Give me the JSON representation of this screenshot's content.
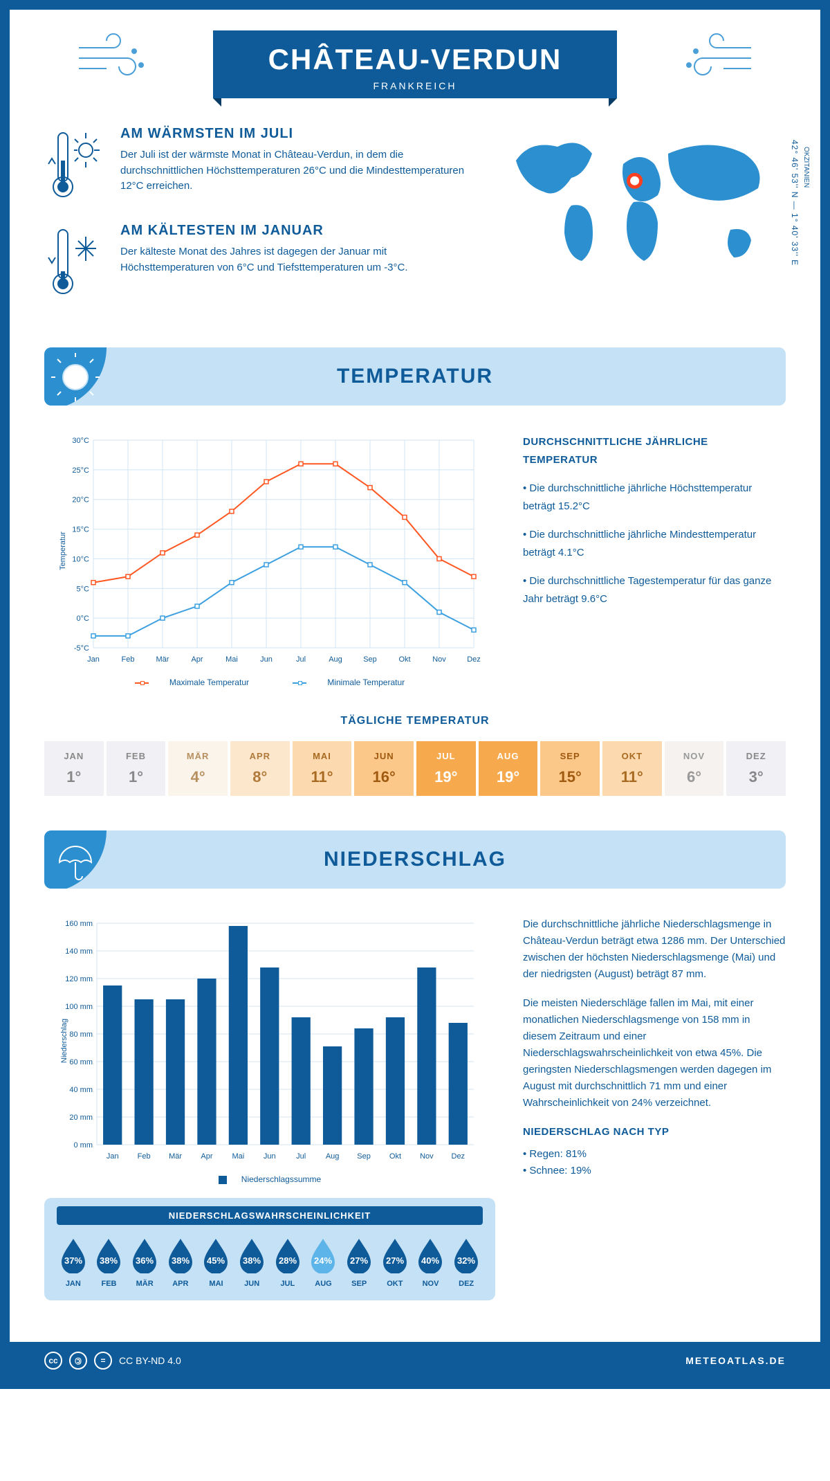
{
  "header": {
    "title": "CHÂTEAU-VERDUN",
    "subtitle": "FRANKREICH"
  },
  "intro": {
    "warm": {
      "heading": "AM WÄRMSTEN IM JULI",
      "text": "Der Juli ist der wärmste Monat in Château-Verdun, in dem die durchschnittlichen Höchsttemperaturen 26°C und die Mindesttemperaturen 12°C erreichen."
    },
    "cold": {
      "heading": "AM KÄLTESTEN IM JANUAR",
      "text": "Der kälteste Monat des Jahres ist dagegen der Januar mit Höchsttemperaturen von 6°C und Tiefsttemperaturen um -3°C."
    },
    "coords": "42° 46' 53'' N — 1° 40' 33'' E",
    "region": "OKZITANIEN",
    "marker": {
      "cx_pct": 48,
      "cy_pct": 36
    }
  },
  "months_short": [
    "Jan",
    "Feb",
    "Mär",
    "Apr",
    "Mai",
    "Jun",
    "Jul",
    "Aug",
    "Sep",
    "Okt",
    "Nov",
    "Dez"
  ],
  "months_upper": [
    "JAN",
    "FEB",
    "MÄR",
    "APR",
    "MAI",
    "JUN",
    "JUL",
    "AUG",
    "SEP",
    "OKT",
    "NOV",
    "DEZ"
  ],
  "temp_section": {
    "title": "TEMPERATUR",
    "chart": {
      "type": "line",
      "y_label": "Temperatur",
      "ylim": [
        -5,
        30
      ],
      "ytick_step": 5,
      "ytick_suffix": "°C",
      "grid_color": "#d0e4f2",
      "series": [
        {
          "name": "Maximale Temperatur",
          "color": "#ff5722",
          "values": [
            6,
            7,
            11,
            14,
            18,
            23,
            26,
            26,
            22,
            17,
            10,
            7
          ]
        },
        {
          "name": "Minimale Temperatur",
          "color": "#3ca0e0",
          "values": [
            -3,
            -3,
            0,
            2,
            6,
            9,
            12,
            12,
            9,
            6,
            1,
            -2
          ]
        }
      ]
    },
    "side": {
      "heading": "DURCHSCHNITTLICHE JÄHRLICHE TEMPERATUR",
      "b1": "• Die durchschnittliche jährliche Höchsttemperatur beträgt 15.2°C",
      "b2": "• Die durchschnittliche jährliche Mindesttemperatur beträgt 4.1°C",
      "b3": "• Die durchschnittliche Tagestemperatur für das ganze Jahr beträgt 9.6°C"
    },
    "daily": {
      "title": "TÄGLICHE TEMPERATUR",
      "values": [
        "1°",
        "1°",
        "4°",
        "8°",
        "11°",
        "16°",
        "19°",
        "19°",
        "15°",
        "11°",
        "6°",
        "3°"
      ],
      "bg_colors": [
        "#f0f0f5",
        "#f0f0f5",
        "#fbf4ea",
        "#fce6cc",
        "#fcd9ae",
        "#fbc88a",
        "#f7a94e",
        "#f7a94e",
        "#fbc88a",
        "#fcd9ae",
        "#f5f2ef",
        "#f0f0f5"
      ],
      "text_colors": [
        "#888",
        "#888",
        "#b79060",
        "#b07a3a",
        "#a86a20",
        "#a05a10",
        "#ffffff",
        "#ffffff",
        "#a05a10",
        "#a86a20",
        "#999",
        "#888"
      ]
    }
  },
  "precip_section": {
    "title": "NIEDERSCHLAG",
    "chart": {
      "type": "bar",
      "y_label": "Niederschlag",
      "ylim": [
        0,
        160
      ],
      "ytick_step": 20,
      "ytick_suffix": " mm",
      "bar_color": "#0f5b99",
      "grid_color": "#d0e4f2",
      "values": [
        115,
        105,
        105,
        120,
        158,
        128,
        92,
        71,
        84,
        92,
        128,
        88
      ],
      "legend": "Niederschlagssumme"
    },
    "text": {
      "p1": "Die durchschnittliche jährliche Niederschlagsmenge in Château-Verdun beträgt etwa 1286 mm. Der Unterschied zwischen der höchsten Niederschlagsmenge (Mai) und der niedrigsten (August) beträgt 87 mm.",
      "p2": "Die meisten Niederschläge fallen im Mai, mit einer monatlichen Niederschlagsmenge von 158 mm in diesem Zeitraum und einer Niederschlagswahrscheinlichkeit von etwa 45%. Die geringsten Niederschlagsmengen werden dagegen im August mit durchschnittlich 71 mm und einer Wahrscheinlichkeit von 24% verzeichnet.",
      "type_heading": "NIEDERSCHLAG NACH TYP",
      "type_b1": "• Regen: 81%",
      "type_b2": "• Schnee: 19%"
    },
    "probability": {
      "title": "NIEDERSCHLAGSWAHRSCHEINLICHKEIT",
      "values": [
        "37%",
        "38%",
        "36%",
        "38%",
        "45%",
        "38%",
        "28%",
        "24%",
        "27%",
        "27%",
        "40%",
        "32%"
      ],
      "min_index": 7,
      "drop_dark": "#0f5b99",
      "drop_light": "#5db4e8"
    }
  },
  "footer": {
    "license": "CC BY-ND 4.0",
    "site": "METEOATLAS.DE"
  }
}
